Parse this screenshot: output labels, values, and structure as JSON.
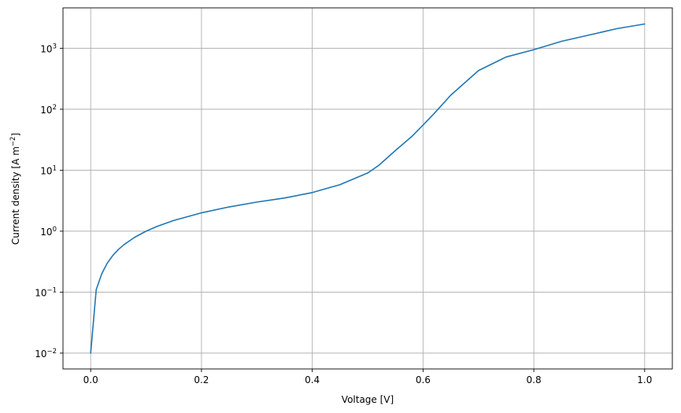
{
  "chart_data": {
    "type": "line",
    "title": "",
    "xlabel": "Voltage [V]",
    "ylabel_main": "Current density [A m",
    "ylabel_exp": "−2",
    "ylabel_close": "]",
    "xscale": "linear",
    "yscale": "log",
    "xlim": [
      -0.05,
      1.05
    ],
    "ylim": [
      0.0055,
      4600
    ],
    "grid": true,
    "legend": "none",
    "x_ticks": [
      {
        "value": 0.0,
        "label": "0.0"
      },
      {
        "value": 0.2,
        "label": "0.2"
      },
      {
        "value": 0.4,
        "label": "0.4"
      },
      {
        "value": 0.6,
        "label": "0.6"
      },
      {
        "value": 0.8,
        "label": "0.8"
      },
      {
        "value": 1.0,
        "label": "1.0"
      }
    ],
    "y_ticks": [
      {
        "value": 0.01,
        "base": "10",
        "exp": "−2"
      },
      {
        "value": 0.1,
        "base": "10",
        "exp": "−1"
      },
      {
        "value": 1,
        "base": "10",
        "exp": "0"
      },
      {
        "value": 10,
        "base": "10",
        "exp": "1"
      },
      {
        "value": 100,
        "base": "10",
        "exp": "2"
      },
      {
        "value": 1000,
        "base": "10",
        "exp": "3"
      }
    ],
    "series": [
      {
        "color": "#1f77b4",
        "x": [
          0.0,
          0.01,
          0.02,
          0.03,
          0.04,
          0.05,
          0.06,
          0.08,
          0.1,
          0.12,
          0.15,
          0.2,
          0.25,
          0.3,
          0.35,
          0.4,
          0.45,
          0.5,
          0.52,
          0.55,
          0.58,
          0.6,
          0.62,
          0.65,
          0.7,
          0.75,
          0.8,
          0.85,
          0.9,
          0.95,
          1.0
        ],
        "y": [
          0.01,
          0.11,
          0.2,
          0.3,
          0.4,
          0.5,
          0.6,
          0.8,
          1.0,
          1.2,
          1.5,
          2.0,
          2.5,
          3.0,
          3.5,
          4.3,
          5.8,
          9.0,
          12,
          21,
          36,
          55,
          85,
          170,
          430,
          720,
          950,
          1300,
          1650,
          2100,
          2500
        ]
      }
    ]
  }
}
